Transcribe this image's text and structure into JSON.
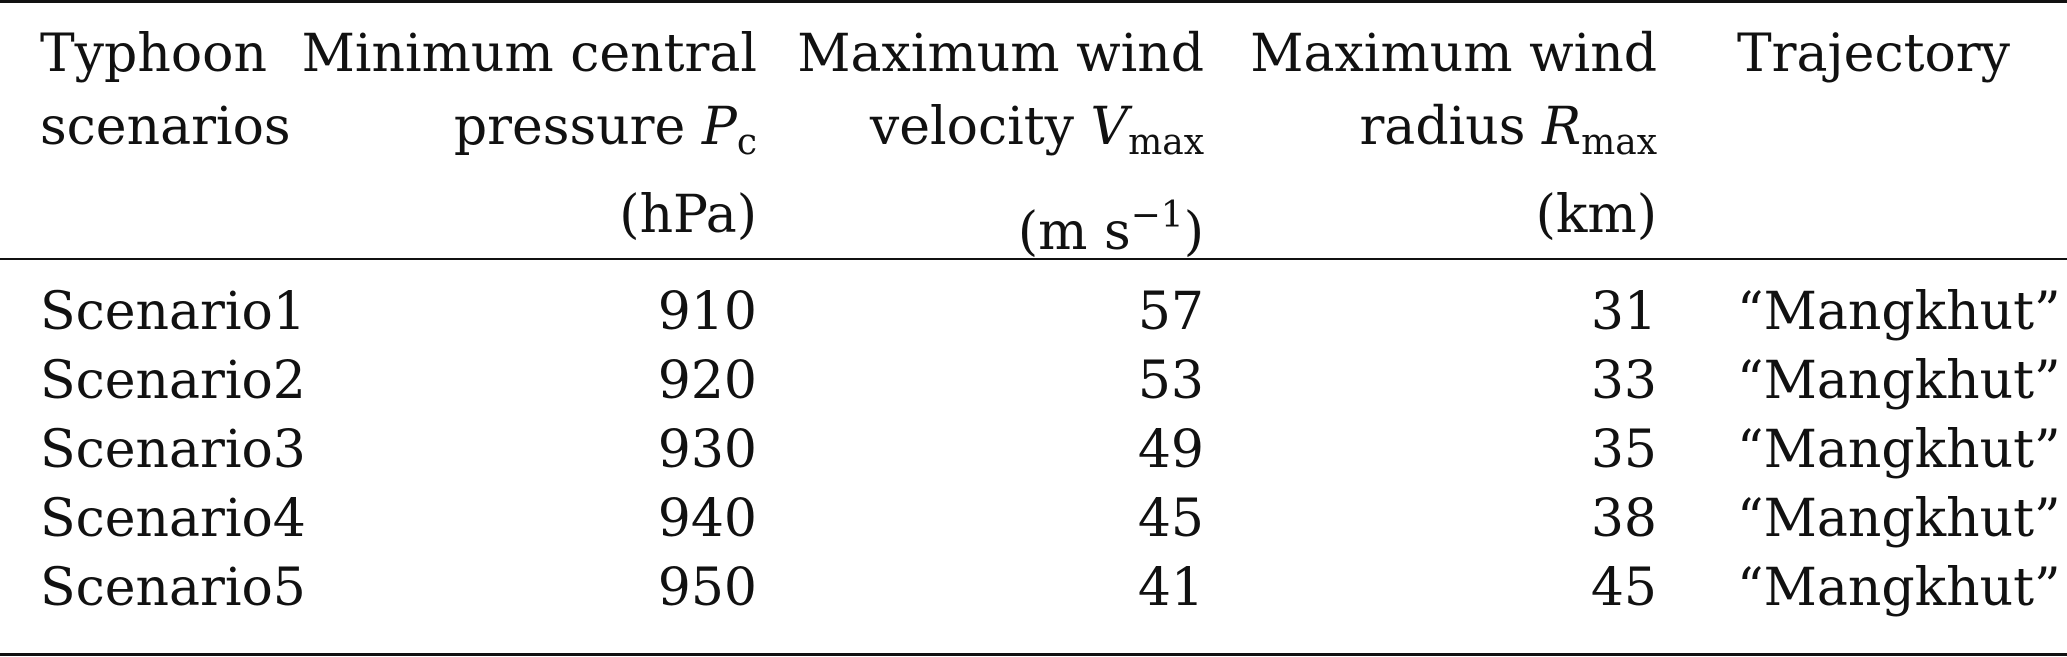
{
  "table": {
    "headers": {
      "col1": [
        "Typhoon",
        "scenarios"
      ],
      "col2": {
        "line1": "Minimum central",
        "line2_text": "pressure ",
        "line2_symbol": "P",
        "line2_sub": "c",
        "line3": "(hPa)"
      },
      "col3": {
        "line1": "Maximum wind",
        "line2_text": "velocity ",
        "line2_symbol": "V",
        "line2_sub": "max",
        "line3_open": "(m s",
        "line3_sup": "−1",
        "line3_close": ")"
      },
      "col4": {
        "line1": "Maximum wind",
        "line2_text": "radius ",
        "line2_symbol": "R",
        "line2_sub": "max",
        "line3": "(km)"
      },
      "col5": [
        "Trajectory"
      ]
    },
    "rows": [
      {
        "scenario": "Scenario1",
        "pressure": "910",
        "velocity": "57",
        "radius": "31",
        "trajectory": "“Mangkhut”"
      },
      {
        "scenario": "Scenario2",
        "pressure": "920",
        "velocity": "53",
        "radius": "33",
        "trajectory": "“Mangkhut”"
      },
      {
        "scenario": "Scenario3",
        "pressure": "930",
        "velocity": "49",
        "radius": "35",
        "trajectory": "“Mangkhut”"
      },
      {
        "scenario": "Scenario4",
        "pressure": "940",
        "velocity": "45",
        "radius": "38",
        "trajectory": "“Mangkhut”"
      },
      {
        "scenario": "Scenario5",
        "pressure": "950",
        "velocity": "41",
        "radius": "45",
        "trajectory": "“Mangkhut”"
      }
    ]
  }
}
